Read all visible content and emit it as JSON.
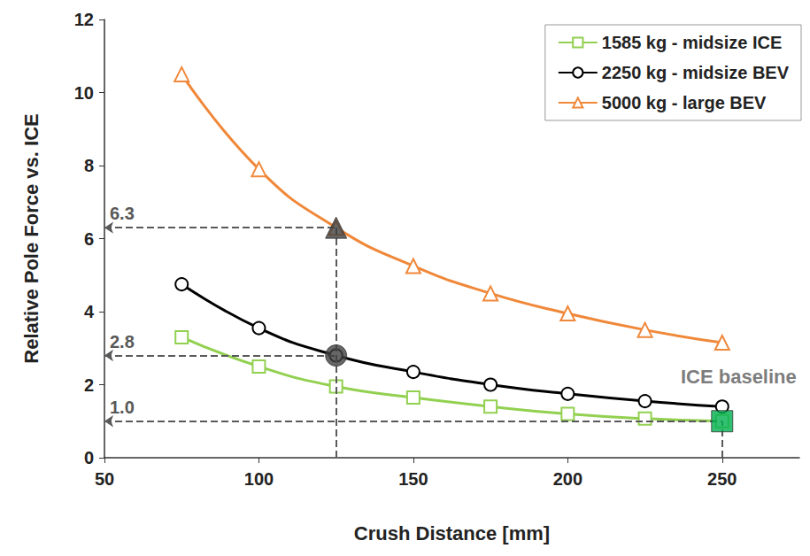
{
  "chart_data": {
    "type": "line",
    "x_label": "Crush Distance [mm]",
    "y_label": "Relative Pole Force vs. ICE",
    "x": [
      75,
      100,
      125,
      150,
      175,
      200,
      225,
      250
    ],
    "series": [
      {
        "name": "1585 kg - midsize ICE",
        "color": "#92d050",
        "marker": "square",
        "values": [
          3.3,
          2.5,
          1.95,
          1.65,
          1.4,
          1.2,
          1.07,
          1.0
        ]
      },
      {
        "name": "2250 kg - midsize BEV",
        "color": "#000000",
        "marker": "circle",
        "values": [
          4.75,
          3.55,
          2.8,
          2.35,
          2.0,
          1.75,
          1.55,
          1.4
        ]
      },
      {
        "name": "5000 kg - large BEV",
        "color": "#f0883a",
        "marker": "triangle",
        "values": [
          10.5,
          7.9,
          6.3,
          5.25,
          4.5,
          3.95,
          3.5,
          3.15
        ]
      }
    ],
    "xlim": [
      50,
      275
    ],
    "xticks": [
      50,
      100,
      150,
      200,
      250
    ],
    "ylim": [
      0,
      12
    ],
    "yticks": [
      0,
      2,
      4,
      6,
      8,
      10,
      12
    ],
    "grid": false,
    "legend": "upper right",
    "callouts": [
      {
        "x": 125,
        "y": 6.3,
        "label": "6.3",
        "marker": "triangle",
        "color": "#404040"
      },
      {
        "x": 125,
        "y": 2.8,
        "label": "2.8",
        "marker": "circle",
        "color": "#404040"
      },
      {
        "x": 250,
        "y": 1.0,
        "label": "1.0",
        "marker": "square",
        "color": "#00b050"
      }
    ],
    "annotations": [
      {
        "text": "ICE baseline",
        "x": 250,
        "y": 1.0
      }
    ]
  }
}
